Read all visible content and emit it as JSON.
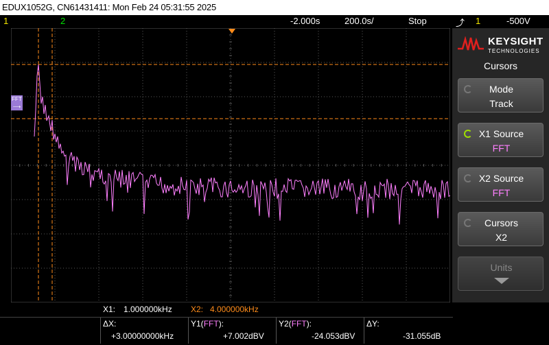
{
  "titlebar": {
    "text": "EDUX1052G, CN61431411: Mon Feb 24 05:31:55 2025"
  },
  "status": {
    "ch1_label": "1",
    "ch2_label": "2",
    "delay": "-2.000s",
    "timebase": "200.0s/",
    "run_state": "Stop",
    "trigger_icon": "trigger-edge-icon",
    "trigger_channel": "1",
    "trigger_level": "-500V"
  },
  "screen": {
    "fft_marker": "FFT",
    "colors": {
      "grid": "#5a5a5a",
      "trace": "#ff80ff",
      "cursor": "#ff8c1a",
      "trigger_marker": "#ff8c1a"
    }
  },
  "sidepanel": {
    "brand": "KEYSIGHT",
    "brand_sub": "TECHNOLOGIES",
    "menu_title": "Cursors",
    "softkeys": [
      {
        "label": "Mode",
        "value": "Track"
      },
      {
        "label": "X1 Source",
        "value": "FFT"
      },
      {
        "label": "X2 Source",
        "value": "FFT"
      },
      {
        "label": "Cursors",
        "value": "X2"
      },
      {
        "label": "Units",
        "value": ""
      }
    ]
  },
  "readout": {
    "x1_label": "X1:",
    "x1_value": "1.000000kHz",
    "x2_label": "X2:",
    "x2_value": "4.000000kHz",
    "dx_label": "ΔX:",
    "dx_value": "+3.00000000kHz",
    "y1_label": "Y1(",
    "y1_src": "FFT",
    "y1_end": "):",
    "y1_value": "+7.002dBV",
    "y2_label": "Y2(",
    "y2_src": "FFT",
    "y2_end": "):",
    "y2_value": "-24.053dBV",
    "dy_label": "ΔY:",
    "dy_value": "-31.055dB"
  }
}
